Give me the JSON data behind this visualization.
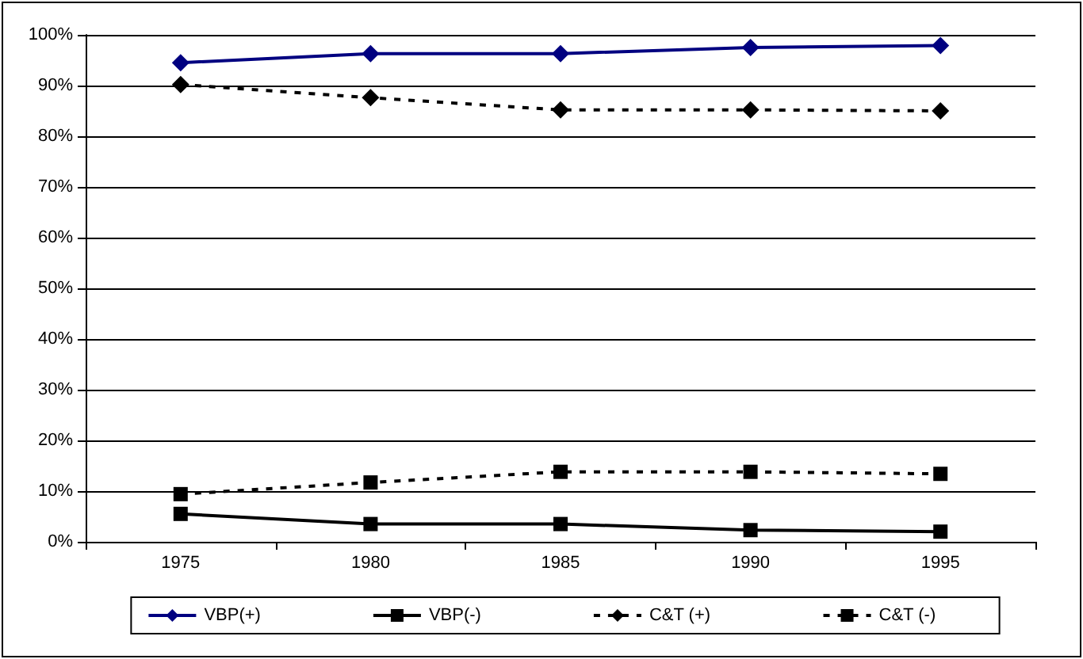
{
  "chart_data": {
    "type": "line",
    "categories": [
      "1975",
      "1980",
      "1985",
      "1990",
      "1995"
    ],
    "series": [
      {
        "name": "VBP(+)",
        "color": "#000080",
        "marker": "diamond",
        "line_style": "solid",
        "values": [
          94.5,
          96.3,
          96.3,
          97.5,
          97.9
        ]
      },
      {
        "name": "VBP(-)",
        "color": "#000000",
        "marker": "square",
        "line_style": "solid",
        "values": [
          5.5,
          3.5,
          3.5,
          2.3,
          2.0
        ]
      },
      {
        "name": "C&T (+)",
        "color": "#000000",
        "marker": "diamond",
        "line_style": "dashed",
        "values": [
          90.2,
          87.6,
          85.2,
          85.2,
          85.0
        ]
      },
      {
        "name": "C&T (-)",
        "color": "#000000",
        "marker": "square",
        "line_style": "dashed",
        "values": [
          9.4,
          11.7,
          13.8,
          13.8,
          13.4
        ]
      }
    ],
    "ylim": [
      0,
      100
    ],
    "yticks": [
      {
        "value": 0,
        "label": "0%"
      },
      {
        "value": 10,
        "label": "10%"
      },
      {
        "value": 20,
        "label": "20%"
      },
      {
        "value": 30,
        "label": "30%"
      },
      {
        "value": 40,
        "label": "40%"
      },
      {
        "value": 50,
        "label": "50%"
      },
      {
        "value": 60,
        "label": "60%"
      },
      {
        "value": 70,
        "label": "70%"
      },
      {
        "value": 80,
        "label": "80%"
      },
      {
        "value": 90,
        "label": "90%"
      },
      {
        "value": 100,
        "label": "100%"
      }
    ],
    "grid": "y",
    "legend": "bottom"
  }
}
